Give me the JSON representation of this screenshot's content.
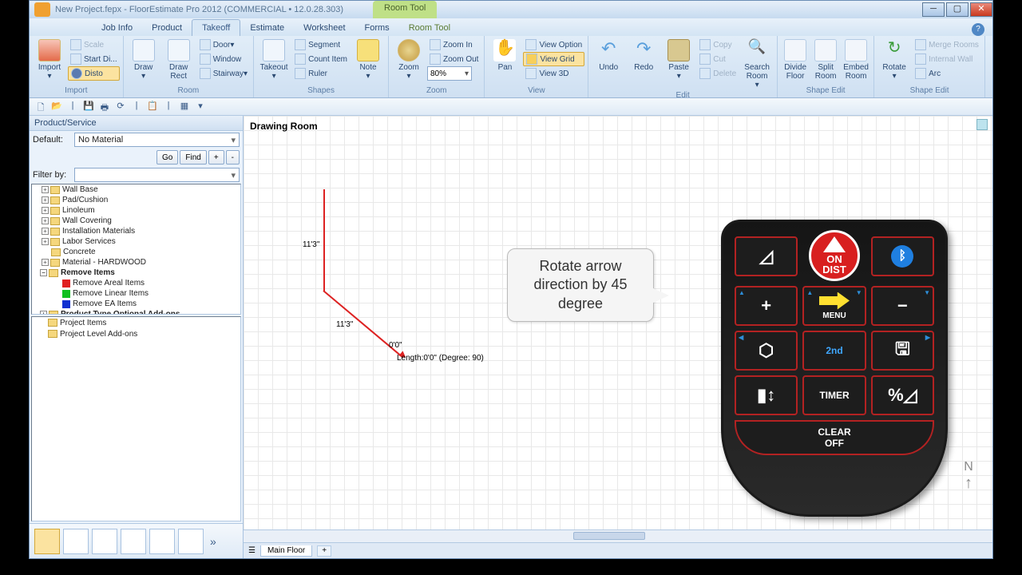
{
  "titlebar": {
    "title": "New Project.fepx - FloorEstimate Pro 2012 (COMMERCIAL • 12.0.28.303)",
    "context_tab": "Room Tool"
  },
  "tabs": {
    "jobinfo": "Job Info",
    "product": "Product",
    "takeoff": "Takeoff",
    "estimate": "Estimate",
    "worksheet": "Worksheet",
    "forms": "Forms",
    "roomtool": "Room Tool"
  },
  "ribbon": {
    "import": {
      "btn": "Import",
      "scale": "Scale",
      "startdi": "Start Di...",
      "disto": "Disto",
      "label": "Import"
    },
    "room": {
      "draw": "Draw",
      "drawrect": "Draw Rect",
      "door": "Door",
      "window": "Window",
      "stairway": "Stairway",
      "label": "Room"
    },
    "shapes": {
      "takeout": "Takeout",
      "segment": "Segment",
      "countitem": "Count Item",
      "ruler": "Ruler",
      "note": "Note",
      "label": "Shapes"
    },
    "zoom": {
      "zoom": "Zoom",
      "zoomin": "Zoom In",
      "zoomout": "Zoom Out",
      "value": "80%",
      "label": "Zoom"
    },
    "view": {
      "pan": "Pan",
      "viewoption": "View Option",
      "viewgrid": "View Grid",
      "view3d": "View 3D",
      "label": "View"
    },
    "edit": {
      "undo": "Undo",
      "redo": "Redo",
      "paste": "Paste",
      "copy": "Copy",
      "cut": "Cut",
      "delete": "Delete",
      "search": "Search Room",
      "label": "Edit"
    },
    "shapeedit1": {
      "divide": "Divide Floor",
      "split": "Split Room",
      "embed": "Embed Room",
      "label": "Shape Edit"
    },
    "shapeedit2": {
      "rotate": "Rotate",
      "merge": "Merge Rooms",
      "internal": "Internal Wall",
      "arc": "Arc",
      "label": "Shape Edit"
    }
  },
  "left": {
    "header": "Product/Service",
    "default_lbl": "Default:",
    "default_val": "No Material",
    "go": "Go",
    "find": "Find",
    "plus": "+",
    "minus": "-",
    "filter_lbl": "Filter by:",
    "tree": {
      "wallbase": "Wall Base",
      "pad": "Pad/Cushion",
      "linoleum": "Linoleum",
      "wallcov": "Wall Covering",
      "install": "Installation Materials",
      "labor": "Labor Services",
      "concrete": "Concrete",
      "hardwood": "Material - HARDWOOD",
      "remove": "Remove Items",
      "r_areal": "Remove Areal Items",
      "r_linear": "Remove Linear Items",
      "r_ea": "Remove EA Items",
      "addons": "Product Type Optional Add-ons"
    },
    "tree2": {
      "projitems": "Project Items",
      "projaddons": "Project Level Add-ons"
    },
    "colors": {
      "areal": "#e02020",
      "linear": "#10c020",
      "ea": "#1030d0"
    }
  },
  "canvas": {
    "title": "Drawing Room",
    "dim1": "11'3\"",
    "dim2": "11'3\"",
    "dim3": "0'0\"",
    "dim4": "Length:0'0\" (Degree: 90)",
    "callout": "Rotate arrow direction by 45 degree",
    "line_color": "#d22222"
  },
  "device": {
    "on": "ON",
    "dist": "DIST",
    "menu": "MENU",
    "second": "2nd",
    "timer": "TIMER",
    "clear": "CLEAR",
    "off": "OFF",
    "plus": "+",
    "minus": "−",
    "accent": "#b32222",
    "arrow_color": "#ffe030"
  },
  "floor": {
    "main": "Main Floor"
  },
  "compass": {
    "n": "N",
    "arrow": "↑"
  }
}
